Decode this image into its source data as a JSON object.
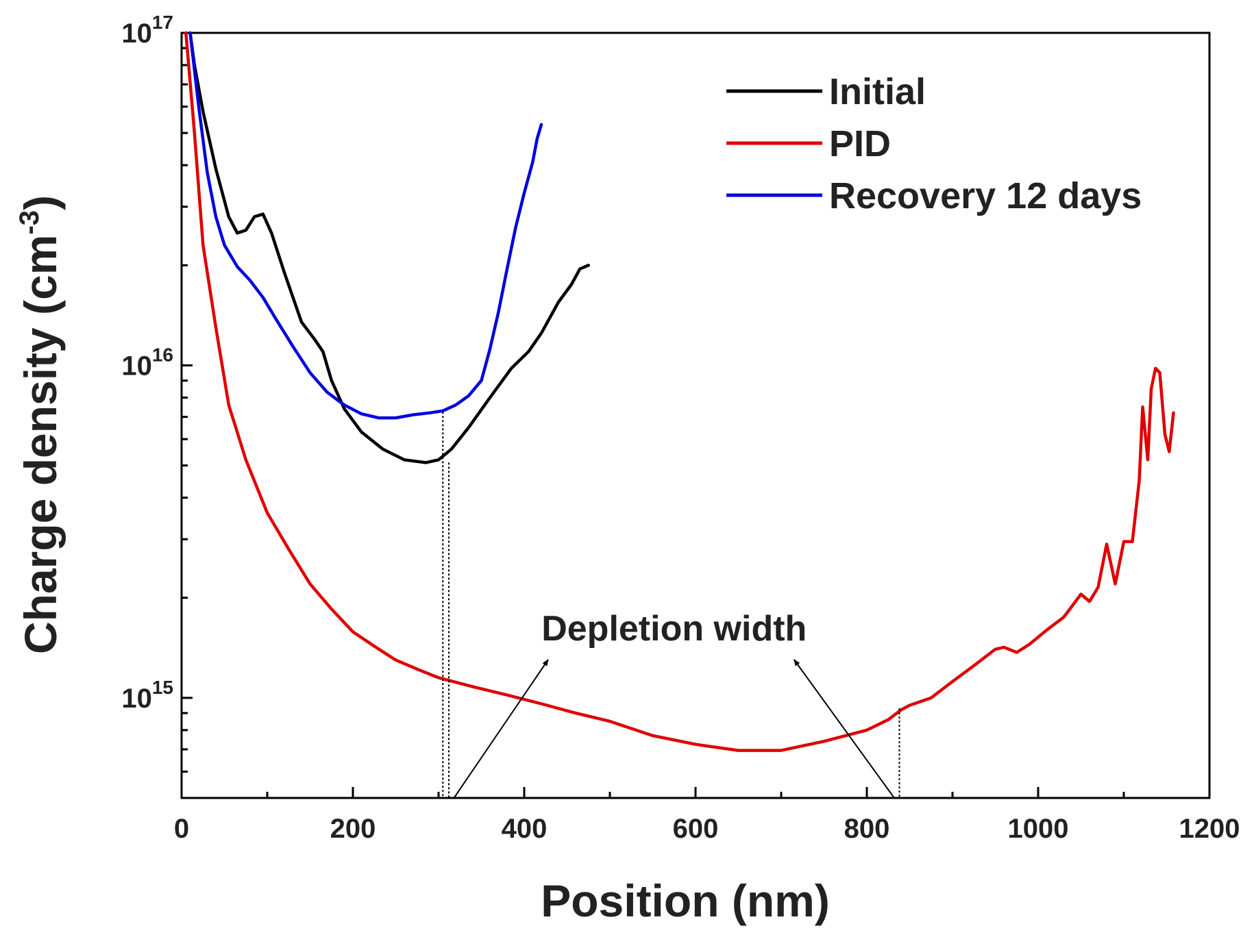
{
  "chart_data": {
    "type": "line",
    "xlabel": "Position (nm)",
    "ylabel_main": "Charge density (cm",
    "ylabel_sup": "-3",
    "ylabel_close": ")",
    "xlim": [
      0,
      1200
    ],
    "ylim": [
      500000000000000.0,
      1e+17
    ],
    "yscale": "log",
    "grid": false,
    "legend_position": "top-right",
    "x_ticks": [
      {
        "value": 0,
        "label": "0"
      },
      {
        "value": 200,
        "label": "200"
      },
      {
        "value": 400,
        "label": "400"
      },
      {
        "value": 600,
        "label": "600"
      },
      {
        "value": 800,
        "label": "800"
      },
      {
        "value": 1000,
        "label": "1000"
      },
      {
        "value": 1200,
        "label": "1200"
      }
    ],
    "y_ticks": [
      {
        "value": 1000000000000000.0,
        "base": "10",
        "exp": "15"
      },
      {
        "value": 1e+16,
        "base": "10",
        "exp": "16"
      },
      {
        "value": 1e+17,
        "base": "10",
        "exp": "17"
      }
    ],
    "series": [
      {
        "name": "Initial",
        "color": "#000000",
        "x": [
          10,
          15,
          25,
          40,
          55,
          65,
          75,
          85,
          95,
          105,
          120,
          140,
          155,
          165,
          175,
          190,
          210,
          235,
          260,
          285,
          300,
          315,
          335,
          360,
          385,
          405,
          420,
          440,
          455,
          465,
          475
        ],
        "y": [
          1e+17,
          8e+16,
          5.8e+16,
          3.9e+16,
          2.8e+16,
          2.5e+16,
          2.55e+16,
          2.8e+16,
          2.85e+16,
          2.5e+16,
          1.9e+16,
          1.35e+16,
          1.2e+16,
          1.1e+16,
          9000000000000000.0,
          7400000000000000.0,
          6300000000000000.0,
          5600000000000000.0,
          5200000000000000.0,
          5100000000000000.0,
          5200000000000000.0,
          5600000000000000.0,
          6500000000000000.0,
          8000000000000000.0,
          9800000000000000.0,
          1.1e+16,
          1.25e+16,
          1.55e+16,
          1.75e+16,
          1.95e+16,
          2e+16
        ]
      },
      {
        "name": "PID",
        "color": "#e00000",
        "x": [
          5,
          15,
          25,
          40,
          55,
          75,
          100,
          125,
          150,
          175,
          200,
          225,
          250,
          275,
          300,
          340,
          380,
          420,
          460,
          500,
          550,
          600,
          650,
          700,
          750,
          800,
          825,
          840,
          850,
          875,
          900,
          925,
          950,
          960,
          975,
          990,
          1010,
          1030,
          1050,
          1060,
          1070,
          1080,
          1090,
          1100,
          1110,
          1118,
          1122,
          1128,
          1132,
          1137,
          1142,
          1148,
          1153,
          1158
        ],
        "y": [
          1e+17,
          5e+16,
          2.3e+16,
          1.3e+16,
          7600000000000000.0,
          5200000000000000.0,
          3600000000000000.0,
          2800000000000000.0,
          2200000000000000.0,
          1850000000000000.0,
          1580000000000000.0,
          1430000000000000.0,
          1300000000000000.0,
          1220000000000000.0,
          1150000000000000.0,
          1080000000000000.0,
          1020000000000000.0,
          960000000000000.0,
          900000000000000.0,
          850000000000000.0,
          770000000000000.0,
          725000000000000.0,
          695000000000000.0,
          695000000000000.0,
          740000000000000.0,
          800000000000000.0,
          860000000000000.0,
          920000000000000.0,
          950000000000000.0,
          1000000000000000.0,
          1120000000000000.0,
          1250000000000000.0,
          1400000000000000.0,
          1420000000000000.0,
          1370000000000000.0,
          1450000000000000.0,
          1600000000000000.0,
          1750000000000000.0,
          2050000000000000.0,
          1950000000000000.0,
          2150000000000000.0,
          2900000000000000.0,
          2200000000000000.0,
          2950000000000000.0,
          2950000000000000.0,
          4500000000000000.0,
          7500000000000000.0,
          5200000000000000.0,
          8500000000000000.0,
          9800000000000000.0,
          9500000000000000.0,
          6200000000000000.0,
          5500000000000000.0,
          7200000000000000.0
        ]
      },
      {
        "name": "Recovery 12 days",
        "color": "#0000dd",
        "x": [
          10,
          20,
          30,
          40,
          50,
          65,
          80,
          95,
          110,
          130,
          150,
          170,
          190,
          210,
          230,
          250,
          270,
          290,
          305,
          320,
          335,
          350,
          360,
          370,
          380,
          390,
          400,
          410,
          415,
          420
        ],
        "y": [
          1e+17,
          6e+16,
          3.8e+16,
          2.8e+16,
          2.3e+16,
          1.98e+16,
          1.8e+16,
          1.6e+16,
          1.38e+16,
          1.14e+16,
          9500000000000000.0,
          8300000000000000.0,
          7600000000000000.0,
          7150000000000000.0,
          6950000000000000.0,
          6950000000000000.0,
          7100000000000000.0,
          7200000000000000.0,
          7300000000000000.0,
          7600000000000000.0,
          8100000000000000.0,
          9000000000000000.0,
          1.12e+16,
          1.45e+16,
          1.95e+16,
          2.6e+16,
          3.3e+16,
          4.1e+16,
          4.8e+16,
          5.3e+16
        ]
      }
    ],
    "legend": [
      {
        "label": "Initial",
        "color": "#000000"
      },
      {
        "label": "PID",
        "color": "#e00000"
      },
      {
        "label": "Recovery 12 days",
        "color": "#0000dd"
      }
    ],
    "annotations": {
      "depletion_label": "Depletion width",
      "depletion_lines_x": [
        305,
        312,
        838
      ],
      "depletion_line_tops": [
        7250000000000000.0,
        5100000000000000.0,
        930000000000000.0
      ]
    }
  }
}
